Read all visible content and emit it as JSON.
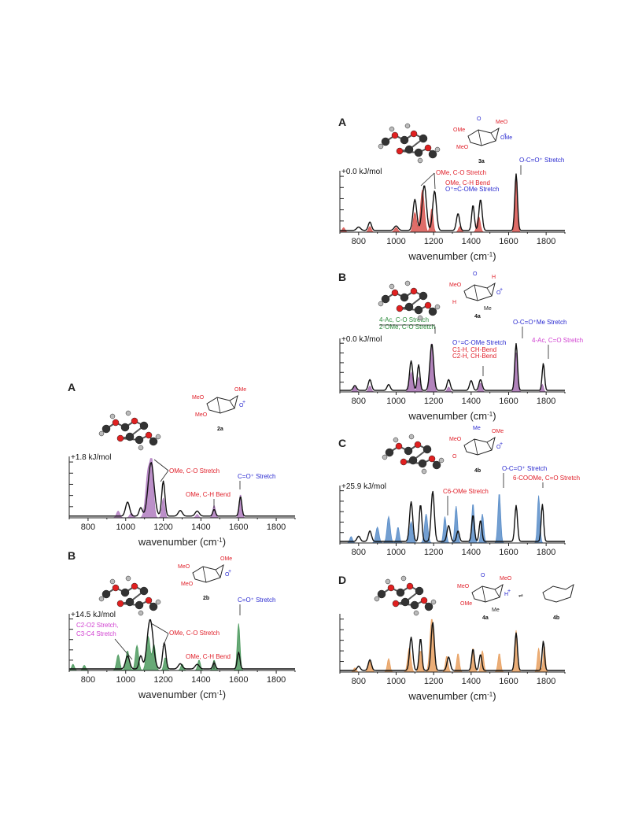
{
  "figure": {
    "colors": {
      "red": "#d9534f",
      "purple": "#9b59b6",
      "green": "#3a8a4a",
      "blue": "#4a7fc1",
      "orange": "#e08a3a",
      "ann_red": "#e0202a",
      "ann_blue": "#2a2ad0",
      "ann_green": "#2a8a3a",
      "ann_pink": "#d040d0"
    }
  },
  "chart_data": [
    {
      "id": "left-A",
      "type": "area",
      "panel_label": "A",
      "energy": "+1.8 kJ/mol",
      "xlabel": "wavenumber (cm",
      "xlabel_unit": "-1",
      "xlabel_close": ")",
      "xlim": [
        700,
        1900
      ],
      "xticks": [
        800,
        1000,
        1200,
        1400,
        1600,
        1800
      ],
      "fill_color": "#b07cc0",
      "theory_peaks": [
        [
          960,
          0.12,
          12
        ],
        [
          1030,
          0.08,
          12
        ],
        [
          1120,
          0.85,
          18
        ],
        [
          1140,
          0.8,
          12
        ],
        [
          1200,
          0.35,
          10
        ],
        [
          1380,
          0.06,
          10
        ],
        [
          1470,
          0.22,
          10
        ],
        [
          1610,
          0.42,
          9
        ]
      ],
      "exp_peaks": [
        [
          1010,
          0.25,
          15
        ],
        [
          1080,
          0.15,
          12
        ],
        [
          1135,
          0.95,
          22
        ],
        [
          1200,
          0.62,
          12
        ],
        [
          1290,
          0.1,
          15
        ],
        [
          1380,
          0.09,
          15
        ],
        [
          1470,
          0.12,
          10
        ],
        [
          1610,
          0.35,
          10
        ]
      ],
      "annotations": [
        {
          "text": "OMe, C-O Stretch",
          "color": "#e0202a"
        },
        {
          "text": "OMe, C-H Bend",
          "color": "#e0202a"
        },
        {
          "text": "C=O⁺ Stretch",
          "color": "#2a2ad0"
        }
      ],
      "molecule": {
        "id": "2a",
        "labels": [
          "MeO",
          "OMe",
          "MeO",
          "O"
        ],
        "charge": "+"
      }
    },
    {
      "id": "left-B",
      "type": "area",
      "panel_label": "B",
      "energy": "+14.5 kJ/mol",
      "xlabel": "wavenumber (cm",
      "xlabel_unit": "-1",
      "xlabel_close": ")",
      "xlim": [
        700,
        1900
      ],
      "xticks": [
        800,
        1000,
        1200,
        1400,
        1600,
        1800
      ],
      "fill_color": "#4c9a5e",
      "theory_peaks": [
        [
          720,
          0.12,
          10
        ],
        [
          780,
          0.1,
          10
        ],
        [
          960,
          0.3,
          12
        ],
        [
          1010,
          0.38,
          12
        ],
        [
          1060,
          0.48,
          12
        ],
        [
          1120,
          0.65,
          14
        ],
        [
          1150,
          0.5,
          12
        ],
        [
          1210,
          0.25,
          10
        ],
        [
          1300,
          0.12,
          10
        ],
        [
          1390,
          0.2,
          10
        ],
        [
          1470,
          0.2,
          10
        ],
        [
          1600,
          0.9,
          10
        ]
      ],
      "exp_peaks": [
        [
          1010,
          0.25,
          15
        ],
        [
          1080,
          0.25,
          12
        ],
        [
          1130,
          0.95,
          22
        ],
        [
          1205,
          0.5,
          12
        ],
        [
          1290,
          0.1,
          15
        ],
        [
          1380,
          0.09,
          15
        ],
        [
          1470,
          0.12,
          10
        ],
        [
          1600,
          0.32,
          10
        ]
      ],
      "annotations": [
        {
          "text": "OMe, C-O Stretch",
          "color": "#e0202a"
        },
        {
          "text": "OMe, C-H Bend",
          "color": "#e0202a"
        },
        {
          "text": "C=O⁺ Stretch",
          "color": "#2a2ad0"
        },
        {
          "text": "C2-O2 Stretch,",
          "color": "#d040d0"
        },
        {
          "text": "C3-C4 Stretch",
          "color": "#d040d0"
        }
      ],
      "molecule": {
        "id": "2b",
        "labels": [
          "MeO",
          "OMe",
          "MeO",
          "O"
        ],
        "charge": "+"
      }
    },
    {
      "id": "right-A",
      "type": "area",
      "panel_label": "A",
      "energy": "+0.0 kJ/mol",
      "xlabel": "wavenumber (cm",
      "xlabel_unit": "-1",
      "xlabel_close": ")",
      "xlim": [
        700,
        1900
      ],
      "xticks": [
        800,
        1000,
        1200,
        1400,
        1600,
        1800
      ],
      "fill_color": "#d9534f",
      "theory_peaks": [
        [
          720,
          0.08,
          10
        ],
        [
          860,
          0.1,
          10
        ],
        [
          1000,
          0.08,
          12
        ],
        [
          1100,
          0.35,
          12
        ],
        [
          1140,
          0.75,
          14
        ],
        [
          1190,
          0.42,
          10
        ],
        [
          1340,
          0.1,
          10
        ],
        [
          1440,
          0.28,
          12
        ],
        [
          1640,
          1.0,
          9
        ]
      ],
      "exp_peaks": [
        [
          800,
          0.06,
          15
        ],
        [
          860,
          0.15,
          12
        ],
        [
          1000,
          0.08,
          15
        ],
        [
          1100,
          0.55,
          14
        ],
        [
          1150,
          0.8,
          16
        ],
        [
          1205,
          0.7,
          14
        ],
        [
          1330,
          0.3,
          12
        ],
        [
          1410,
          0.45,
          10
        ],
        [
          1450,
          0.55,
          12
        ],
        [
          1640,
          1.0,
          10
        ]
      ],
      "annotations": [
        {
          "text": "OMe, C-O Stretch",
          "color": "#e0202a"
        },
        {
          "text": "OMe, C-H Bend",
          "color": "#e0202a"
        },
        {
          "text": "O⁺=C-OMe Stretch",
          "color": "#2a2ad0"
        },
        {
          "text": "O-C=O⁺ Stretch",
          "color": "#2a2ad0"
        }
      ],
      "molecule": {
        "id": "3a",
        "labels": [
          "OMe",
          "MeO",
          "MeO",
          "OMe",
          "O"
        ],
        "charge": "+"
      }
    },
    {
      "id": "right-B",
      "type": "area",
      "panel_label": "B",
      "energy": "+0.0 kJ/mol",
      "xlabel": "wavenumber (cm",
      "xlabel_unit": "-1",
      "xlabel_close": ")",
      "xlim": [
        700,
        1900
      ],
      "xticks": [
        800,
        1000,
        1200,
        1400,
        1600,
        1800
      ],
      "fill_color": "#a56fb0",
      "theory_peaks": [
        [
          780,
          0.1,
          10
        ],
        [
          860,
          0.12,
          10
        ],
        [
          1080,
          0.4,
          12
        ],
        [
          1120,
          0.3,
          10
        ],
        [
          1190,
          1.0,
          12
        ],
        [
          1280,
          0.1,
          10
        ],
        [
          1450,
          0.18,
          10
        ],
        [
          1640,
          0.8,
          10
        ],
        [
          1780,
          0.15,
          8
        ]
      ],
      "exp_peaks": [
        [
          780,
          0.1,
          12
        ],
        [
          860,
          0.22,
          12
        ],
        [
          960,
          0.12,
          12
        ],
        [
          1080,
          0.6,
          12
        ],
        [
          1120,
          0.52,
          10
        ],
        [
          1190,
          0.95,
          14
        ],
        [
          1280,
          0.22,
          12
        ],
        [
          1400,
          0.2,
          12
        ],
        [
          1450,
          0.22,
          12
        ],
        [
          1640,
          0.95,
          10
        ],
        [
          1785,
          0.55,
          9
        ]
      ],
      "annotations": [
        {
          "text": "4-Ac, C-O Stretch",
          "color": "#2a8a3a"
        },
        {
          "text": "2-OMe, C-O Stretch",
          "color": "#2a8a3a"
        },
        {
          "text": "O⁺=C-OMe Stretch",
          "color": "#2a2ad0"
        },
        {
          "text": "C1-H, CH-Bend",
          "color": "#e0202a"
        },
        {
          "text": "C2-H, CH-Bend",
          "color": "#e0202a"
        },
        {
          "text": "O-C=O⁺Me Stretch",
          "color": "#2a2ad0"
        },
        {
          "text": "4-Ac, C=O Stretch",
          "color": "#d040d0"
        }
      ],
      "molecule": {
        "id": "4a",
        "labels": [
          "MeO",
          "H",
          "H",
          "O",
          "O",
          "Me"
        ],
        "charge": "+"
      }
    },
    {
      "id": "right-C",
      "type": "area",
      "panel_label": "C",
      "energy": "+25.9 kJ/mol",
      "xlabel": "",
      "xlabel_unit": "",
      "xlabel_close": "",
      "xlim": [
        700,
        1900
      ],
      "xticks": [
        800,
        1000,
        1200,
        1400,
        1600,
        1800
      ],
      "fill_color": "#5b8ec9",
      "theory_peaks": [
        [
          760,
          0.12,
          10
        ],
        [
          900,
          0.3,
          12
        ],
        [
          960,
          0.5,
          12
        ],
        [
          1010,
          0.3,
          10
        ],
        [
          1080,
          0.4,
          12
        ],
        [
          1160,
          0.55,
          12
        ],
        [
          1260,
          0.5,
          10
        ],
        [
          1320,
          0.7,
          10
        ],
        [
          1410,
          0.75,
          10
        ],
        [
          1460,
          0.55,
          10
        ],
        [
          1550,
          0.95,
          10
        ],
        [
          1760,
          0.9,
          9
        ]
      ],
      "exp_peaks": [
        [
          800,
          0.1,
          12
        ],
        [
          860,
          0.2,
          12
        ],
        [
          1080,
          0.75,
          12
        ],
        [
          1130,
          0.7,
          10
        ],
        [
          1195,
          0.95,
          12
        ],
        [
          1280,
          0.3,
          12
        ],
        [
          1330,
          0.2,
          10
        ],
        [
          1410,
          0.5,
          10
        ],
        [
          1450,
          0.4,
          10
        ],
        [
          1640,
          0.68,
          10
        ],
        [
          1780,
          0.7,
          9
        ]
      ],
      "annotations": [
        {
          "text": "C6-OMe Stretch",
          "color": "#e0202a"
        },
        {
          "text": "O-C=O⁺ Stretch",
          "color": "#2a2ad0"
        },
        {
          "text": "6-COOMe, C=O Stretch",
          "color": "#e0202a"
        }
      ],
      "molecule": {
        "id": "4b",
        "labels": [
          "MeO",
          "OMe",
          "O",
          "O",
          "Me"
        ],
        "charge": "+"
      }
    },
    {
      "id": "right-D",
      "type": "area",
      "panel_label": "D",
      "energy": "",
      "xlabel": "wavenumber (cm",
      "xlabel_unit": "-1",
      "xlabel_close": ")",
      "xlim": [
        700,
        1900
      ],
      "xticks": [
        800,
        1000,
        1200,
        1400,
        1600,
        1800
      ],
      "fill_color": "#e8a060",
      "theory_peaks": [
        [
          780,
          0.08,
          10
        ],
        [
          860,
          0.2,
          12
        ],
        [
          960,
          0.25,
          10
        ],
        [
          1070,
          0.45,
          12
        ],
        [
          1130,
          0.4,
          10
        ],
        [
          1190,
          1.0,
          14
        ],
        [
          1270,
          0.3,
          10
        ],
        [
          1330,
          0.35,
          10
        ],
        [
          1410,
          0.45,
          10
        ],
        [
          1460,
          0.4,
          10
        ],
        [
          1550,
          0.35,
          10
        ],
        [
          1640,
          0.78,
          10
        ],
        [
          1760,
          0.45,
          9
        ],
        [
          1790,
          0.5,
          8
        ]
      ],
      "exp_peaks": [
        [
          800,
          0.08,
          12
        ],
        [
          860,
          0.2,
          12
        ],
        [
          1080,
          0.62,
          12
        ],
        [
          1130,
          0.6,
          10
        ],
        [
          1195,
          0.9,
          12
        ],
        [
          1280,
          0.25,
          12
        ],
        [
          1410,
          0.4,
          10
        ],
        [
          1450,
          0.3,
          10
        ],
        [
          1640,
          0.7,
          10
        ],
        [
          1785,
          0.55,
          9
        ]
      ],
      "annotations": [],
      "molecule": {
        "id": "4a",
        "id2": "4b",
        "labels": [
          "MeO",
          "MeO",
          "OMe",
          "H",
          "O",
          "Me"
        ],
        "charge": "+",
        "equilibrium": "⇌"
      }
    }
  ]
}
